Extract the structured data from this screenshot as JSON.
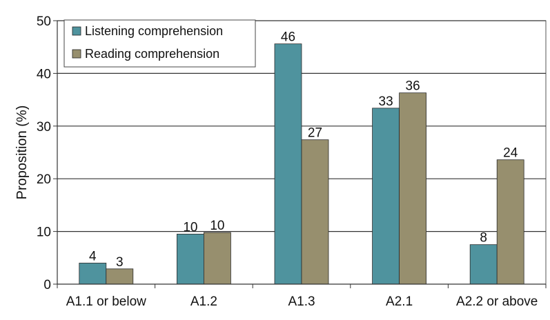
{
  "chart_data": {
    "type": "bar",
    "title": "",
    "xlabel": "",
    "ylabel": "Proposition (%)",
    "ylim": [
      0,
      50
    ],
    "yticks": [
      0,
      10,
      20,
      30,
      40,
      50
    ],
    "grid": true,
    "legend_position": "top-left",
    "categories": [
      "A1.1 or below",
      "A1.2",
      "A1.3",
      "A2.1",
      "A2.2 or above"
    ],
    "series": [
      {
        "name": "Listening comprehension",
        "color": "#4f939e",
        "values": [
          4,
          9.5,
          45.6,
          33.4,
          7.5
        ],
        "labels": [
          "4",
          "10",
          "46",
          "33",
          "8"
        ]
      },
      {
        "name": "Reading comprehension",
        "color": "#978f6e",
        "values": [
          2.9,
          9.8,
          27.4,
          36.3,
          23.6
        ],
        "labels": [
          "3",
          "10",
          "27",
          "36",
          "24"
        ]
      }
    ]
  }
}
